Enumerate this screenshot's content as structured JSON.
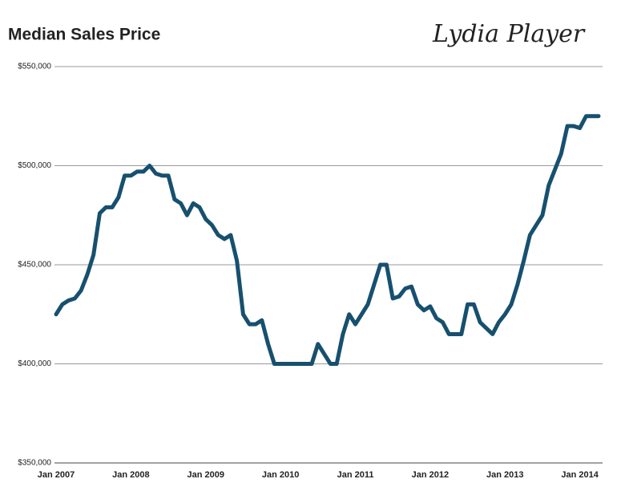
{
  "chart_data": {
    "type": "line",
    "title": "Median Sales Price",
    "watermark": "Lydia Player",
    "categories": [
      "Jan 2007",
      null,
      null,
      null,
      null,
      null,
      null,
      null,
      null,
      null,
      null,
      null,
      "Jan 2008",
      null,
      null,
      null,
      null,
      null,
      null,
      null,
      null,
      null,
      null,
      null,
      "Jan 2009",
      null,
      null,
      null,
      null,
      null,
      null,
      null,
      null,
      null,
      null,
      null,
      "Jan 2010",
      null,
      null,
      null,
      null,
      null,
      null,
      null,
      null,
      null,
      null,
      null,
      "Jan 2011",
      null,
      null,
      null,
      null,
      null,
      null,
      null,
      null,
      null,
      null,
      null,
      "Jan 2012",
      null,
      null,
      null,
      null,
      null,
      null,
      null,
      null,
      null,
      null,
      null,
      "Jan 2013",
      null,
      null,
      null,
      null,
      null,
      null,
      null,
      null,
      null,
      null,
      null,
      "Jan 2014",
      null,
      null,
      null
    ],
    "series": [
      {
        "name": "Median Sales Price",
        "color": "#17506f",
        "values": [
          425000,
          430000,
          432000,
          433000,
          437000,
          445000,
          455000,
          476000,
          479000,
          479000,
          484000,
          495000,
          495000,
          497000,
          497000,
          500000,
          496000,
          495000,
          495000,
          483000,
          481000,
          475000,
          481000,
          479000,
          473000,
          470000,
          465000,
          463000,
          465000,
          452000,
          425000,
          420000,
          420000,
          422000,
          410000,
          400000,
          400000,
          400000,
          400000,
          400000,
          400000,
          400000,
          410000,
          405000,
          400000,
          400000,
          415000,
          425000,
          420000,
          425000,
          430000,
          440000,
          450000,
          450000,
          433000,
          434000,
          438000,
          439000,
          430000,
          427000,
          429000,
          423000,
          421000,
          415000,
          415000,
          415000,
          430000,
          430000,
          421000,
          418000,
          415000,
          421000,
          425000,
          430000,
          440000,
          452000,
          465000,
          470000,
          475000,
          490000,
          498000,
          506000,
          520000,
          520000,
          519000,
          525000,
          525000,
          525000
        ]
      }
    ],
    "ylim": [
      350000,
      550000
    ],
    "yticks": [
      {
        "value": 350000,
        "label": "$350,000"
      },
      {
        "value": 400000,
        "label": "$400,000"
      },
      {
        "value": 450000,
        "label": "$450,000"
      },
      {
        "value": 500000,
        "label": "$500,000"
      },
      {
        "value": 550000,
        "label": "$550,000"
      }
    ],
    "grid": true
  }
}
